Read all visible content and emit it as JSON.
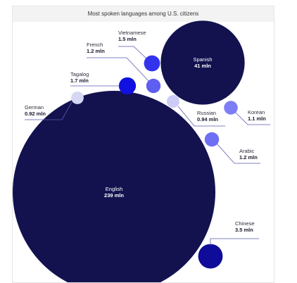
{
  "title": "Most spoken languages among U.S. citizens",
  "chart_data": {
    "type": "bubble",
    "title": "Most spoken languages among U.S. citizens",
    "unit": "mln",
    "series": [
      {
        "name": "English",
        "value": 239,
        "label_value": "239 mln",
        "color": "#13124f"
      },
      {
        "name": "Spanish",
        "value": 41,
        "label_value": "41 mln",
        "color": "#13124f"
      },
      {
        "name": "Chinese",
        "value": 3.5,
        "label_value": "3.5 mln",
        "color": "#0f0c9a"
      },
      {
        "name": "Tagalog",
        "value": 1.7,
        "label_value": "1.7 mln",
        "color": "#1010e0"
      },
      {
        "name": "Vietnamese",
        "value": 1.5,
        "label_value": "1.5 mln",
        "color": "#3333ee"
      },
      {
        "name": "French",
        "value": 1.2,
        "label_value": "1.2 mln",
        "color": "#5e5ef0"
      },
      {
        "name": "Arabic",
        "value": 1.2,
        "label_value": "1.2 mln",
        "color": "#6f6ff3"
      },
      {
        "name": "Korean",
        "value": 1.1,
        "label_value": "1.1 mln",
        "color": "#7d7df5"
      },
      {
        "name": "Russian",
        "value": 0.94,
        "label_value": "0.94 mln",
        "color": "#ccccf6"
      },
      {
        "name": "German",
        "value": 0.92,
        "label_value": "0.92 mln",
        "color": "#d6d6f5"
      }
    ]
  }
}
